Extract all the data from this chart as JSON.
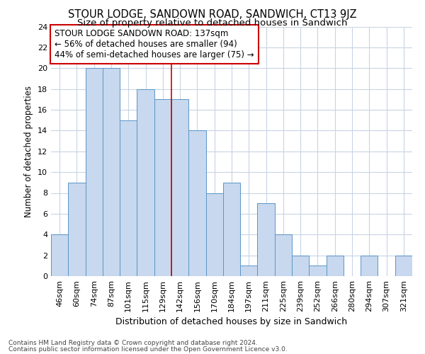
{
  "title": "STOUR LODGE, SANDOWN ROAD, SANDWICH, CT13 9JZ",
  "subtitle": "Size of property relative to detached houses in Sandwich",
  "xlabel": "Distribution of detached houses by size in Sandwich",
  "ylabel": "Number of detached properties",
  "bar_values": [
    4,
    9,
    20,
    20,
    15,
    18,
    17,
    17,
    14,
    8,
    9,
    1,
    7,
    4,
    2,
    1,
    2,
    0,
    2,
    0,
    2
  ],
  "bar_labels": [
    "46sqm",
    "60sqm",
    "74sqm",
    "87sqm",
    "101sqm",
    "115sqm",
    "129sqm",
    "142sqm",
    "156sqm",
    "170sqm",
    "184sqm",
    "197sqm",
    "211sqm",
    "225sqm",
    "239sqm",
    "252sqm",
    "266sqm",
    "280sqm",
    "294sqm",
    "307sqm",
    "321sqm"
  ],
  "bar_color": "#c8d8ee",
  "bar_edge_color": "#5a96c8",
  "ylim": [
    0,
    24
  ],
  "yticks": [
    0,
    2,
    4,
    6,
    8,
    10,
    12,
    14,
    16,
    18,
    20,
    22,
    24
  ],
  "marker_bar_index": 7,
  "marker_line_color": "#cc0000",
  "annotation_text": "STOUR LODGE SANDOWN ROAD: 137sqm\n← 56% of detached houses are smaller (94)\n44% of semi-detached houses are larger (75) →",
  "annotation_box_color": "#ffffff",
  "annotation_box_edge": "#cc0000",
  "footer_line1": "Contains HM Land Registry data © Crown copyright and database right 2024.",
  "footer_line2": "Contains public sector information licensed under the Open Government Licence v3.0.",
  "grid_color": "#c8d4e4",
  "background_color": "#ffffff",
  "title_fontsize": 10.5,
  "subtitle_fontsize": 9.5,
  "tick_fontsize": 8,
  "ylabel_fontsize": 8.5,
  "xlabel_fontsize": 9,
  "footer_fontsize": 6.5,
  "annotation_fontsize": 8.5
}
